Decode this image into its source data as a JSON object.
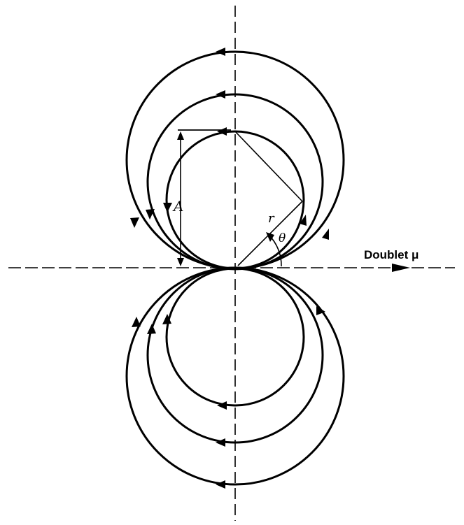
{
  "figure": {
    "axis_label": "Doublet μ",
    "diameter_label": "A",
    "radius_label": "r",
    "angle_label": "θ"
  }
}
